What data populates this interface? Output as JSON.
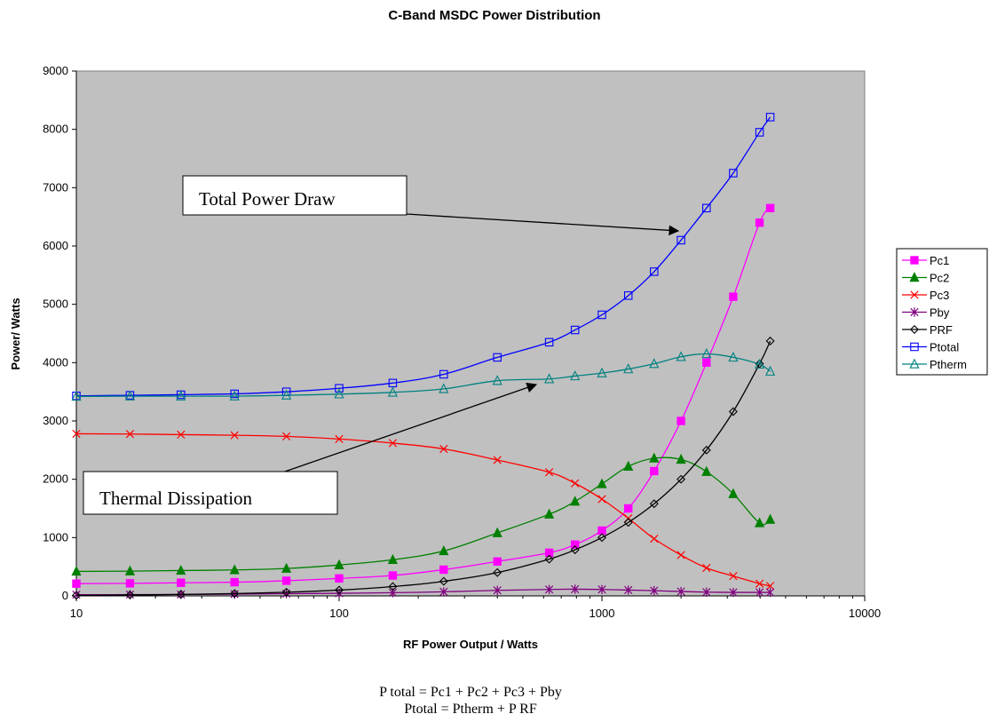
{
  "chart_data": {
    "type": "line",
    "title": "C-Band MSDC Power Distribution",
    "xlabel": "RF Power Output / Watts",
    "ylabel": "Power/ Watts",
    "xscale": "log",
    "xlim": [
      10,
      10000
    ],
    "ylim": [
      0,
      9000
    ],
    "x_ticks": [
      "10",
      "100",
      "1000",
      "10000"
    ],
    "y_ticks": [
      "0",
      "1000",
      "2000",
      "3000",
      "4000",
      "5000",
      "6000",
      "7000",
      "8000",
      "9000"
    ],
    "grid": false,
    "legend_position": "right",
    "x": [
      10,
      16,
      25,
      40,
      63,
      100,
      160,
      250,
      400,
      630,
      790,
      1000,
      1260,
      1580,
      2000,
      2500,
      3160,
      3980,
      4370
    ],
    "series": [
      {
        "name": "Pc1",
        "color": "#ff00ff",
        "marker": "square-filled",
        "values": [
          210,
          215,
          225,
          235,
          260,
          300,
          350,
          450,
          590,
          740,
          880,
          1120,
          1500,
          2140,
          3000,
          4000,
          5130,
          6400,
          6650
        ]
      },
      {
        "name": "Pc2",
        "color": "#008000",
        "marker": "triangle-filled",
        "values": [
          420,
          425,
          435,
          445,
          470,
          530,
          620,
          770,
          1080,
          1400,
          1620,
          1920,
          2220,
          2360,
          2340,
          2130,
          1750,
          1250,
          1310
        ]
      },
      {
        "name": "Pc3",
        "color": "#ff0000",
        "marker": "x",
        "values": [
          2780,
          2775,
          2765,
          2755,
          2735,
          2690,
          2620,
          2520,
          2330,
          2120,
          1930,
          1660,
          1330,
          980,
          700,
          480,
          340,
          210,
          170
        ]
      },
      {
        "name": "Pby",
        "color": "#800080",
        "marker": "star",
        "values": [
          20,
          22,
          25,
          30,
          38,
          45,
          55,
          70,
          95,
          110,
          115,
          110,
          100,
          90,
          75,
          65,
          60,
          60,
          60
        ]
      },
      {
        "name": "PRF",
        "color": "#000000",
        "marker": "diamond-open",
        "values": [
          10,
          16,
          25,
          40,
          63,
          100,
          160,
          250,
          400,
          630,
          790,
          1000,
          1260,
          1580,
          2000,
          2500,
          3160,
          3980,
          4370
        ]
      },
      {
        "name": "Ptotal",
        "color": "#0000ff",
        "marker": "square-open",
        "values": [
          3430,
          3440,
          3450,
          3465,
          3500,
          3560,
          3650,
          3800,
          4090,
          4350,
          4560,
          4820,
          5150,
          5560,
          6100,
          6650,
          7250,
          7950,
          8210
        ]
      },
      {
        "name": "Ptherm",
        "color": "#008080",
        "marker": "triangle-open",
        "values": [
          3420,
          3425,
          3425,
          3425,
          3440,
          3460,
          3490,
          3550,
          3690,
          3720,
          3770,
          3820,
          3890,
          3980,
          4100,
          4150,
          4090,
          3970,
          3850
        ]
      }
    ],
    "annotations": [
      {
        "text": "Total Power Draw",
        "target_series": "Ptotal"
      },
      {
        "text": "Thermal Dissipation",
        "target_series": "Ptherm"
      }
    ],
    "footer": [
      "P total = Pc1 + Pc2 + Pc3 + Pby",
      "Ptotal = Ptherm + P RF"
    ]
  },
  "colors": {
    "plot_background": "#c0c0c0",
    "page_background": "#ffffff"
  }
}
